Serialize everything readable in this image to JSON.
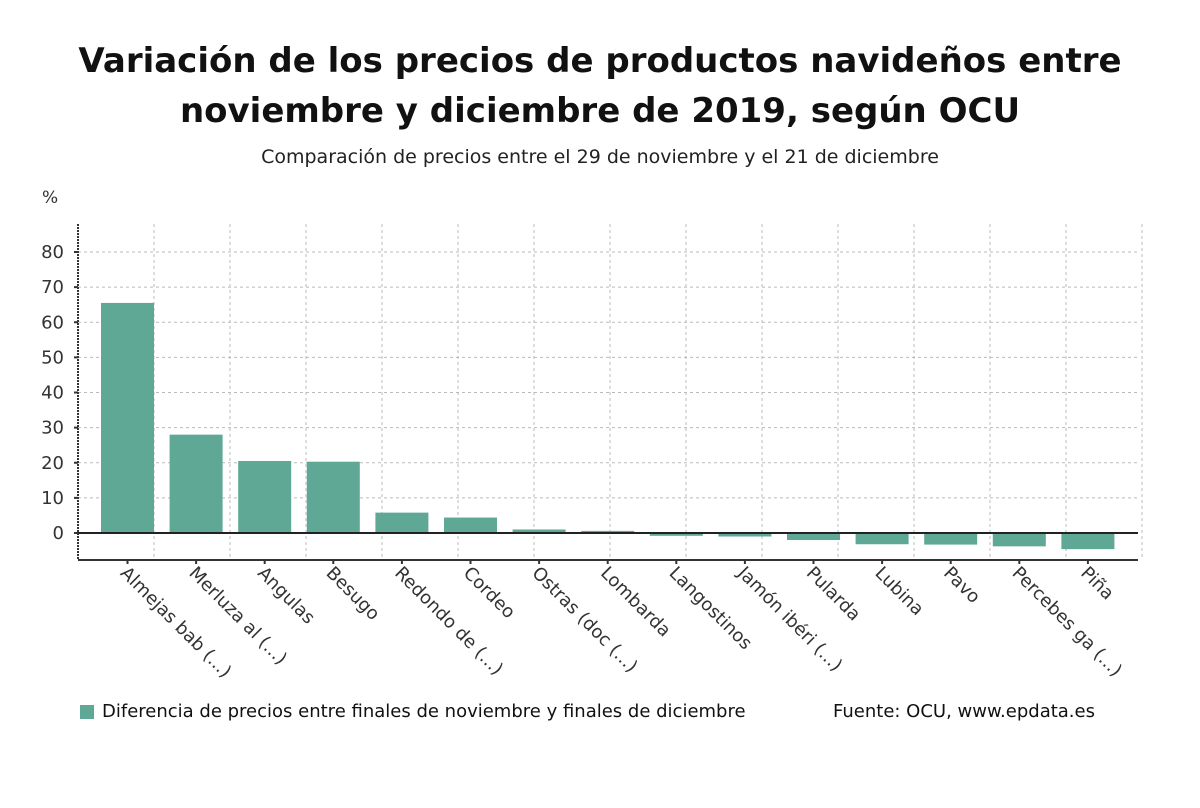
{
  "title_line1": "Variación de los precios de productos navideños entre",
  "title_line2": "noviembre y diciembre de 2019, según OCU",
  "subtitle": "Comparación de precios entre el 29 de noviembre y el 21 de diciembre",
  "unit_label": "%",
  "legend": {
    "label": "Diferencia de precios entre finales de noviembre y finales de diciembre",
    "color": "#5fa896"
  },
  "source": "Fuente: OCU, www.epdata.es",
  "chart_data": {
    "type": "bar",
    "title": "Variación de los precios de productos navideños entre noviembre y diciembre de 2019, según OCU",
    "subtitle": "Comparación de precios entre el 29 de noviembre y el 21 de diciembre",
    "xlabel": "",
    "ylabel": "%",
    "ylim": [
      -5,
      88
    ],
    "yticks": [
      0,
      10,
      20,
      30,
      40,
      50,
      60,
      70,
      80
    ],
    "grid": true,
    "legend_position": "bottom-left",
    "categories": [
      "Almejas bab (...)",
      "Merluza al (...)",
      "Angulas",
      "Besugo",
      "Redondo de (...)",
      "Cordeo",
      "Ostras (doc (...)",
      "Lombarda",
      "Langostinos",
      "Jamón ibéri (...)",
      "Pularda",
      "Lubina",
      "Pavo",
      "Percebes ga (...)",
      "Piña"
    ],
    "series": [
      {
        "name": "Diferencia de precios entre finales de noviembre y finales de diciembre",
        "color": "#5fa896",
        "values": [
          65.5,
          28.0,
          20.5,
          20.3,
          5.8,
          4.4,
          1.0,
          0.6,
          -0.8,
          -1.0,
          -2.0,
          -3.2,
          -3.3,
          -3.8,
          -4.6
        ]
      }
    ]
  }
}
